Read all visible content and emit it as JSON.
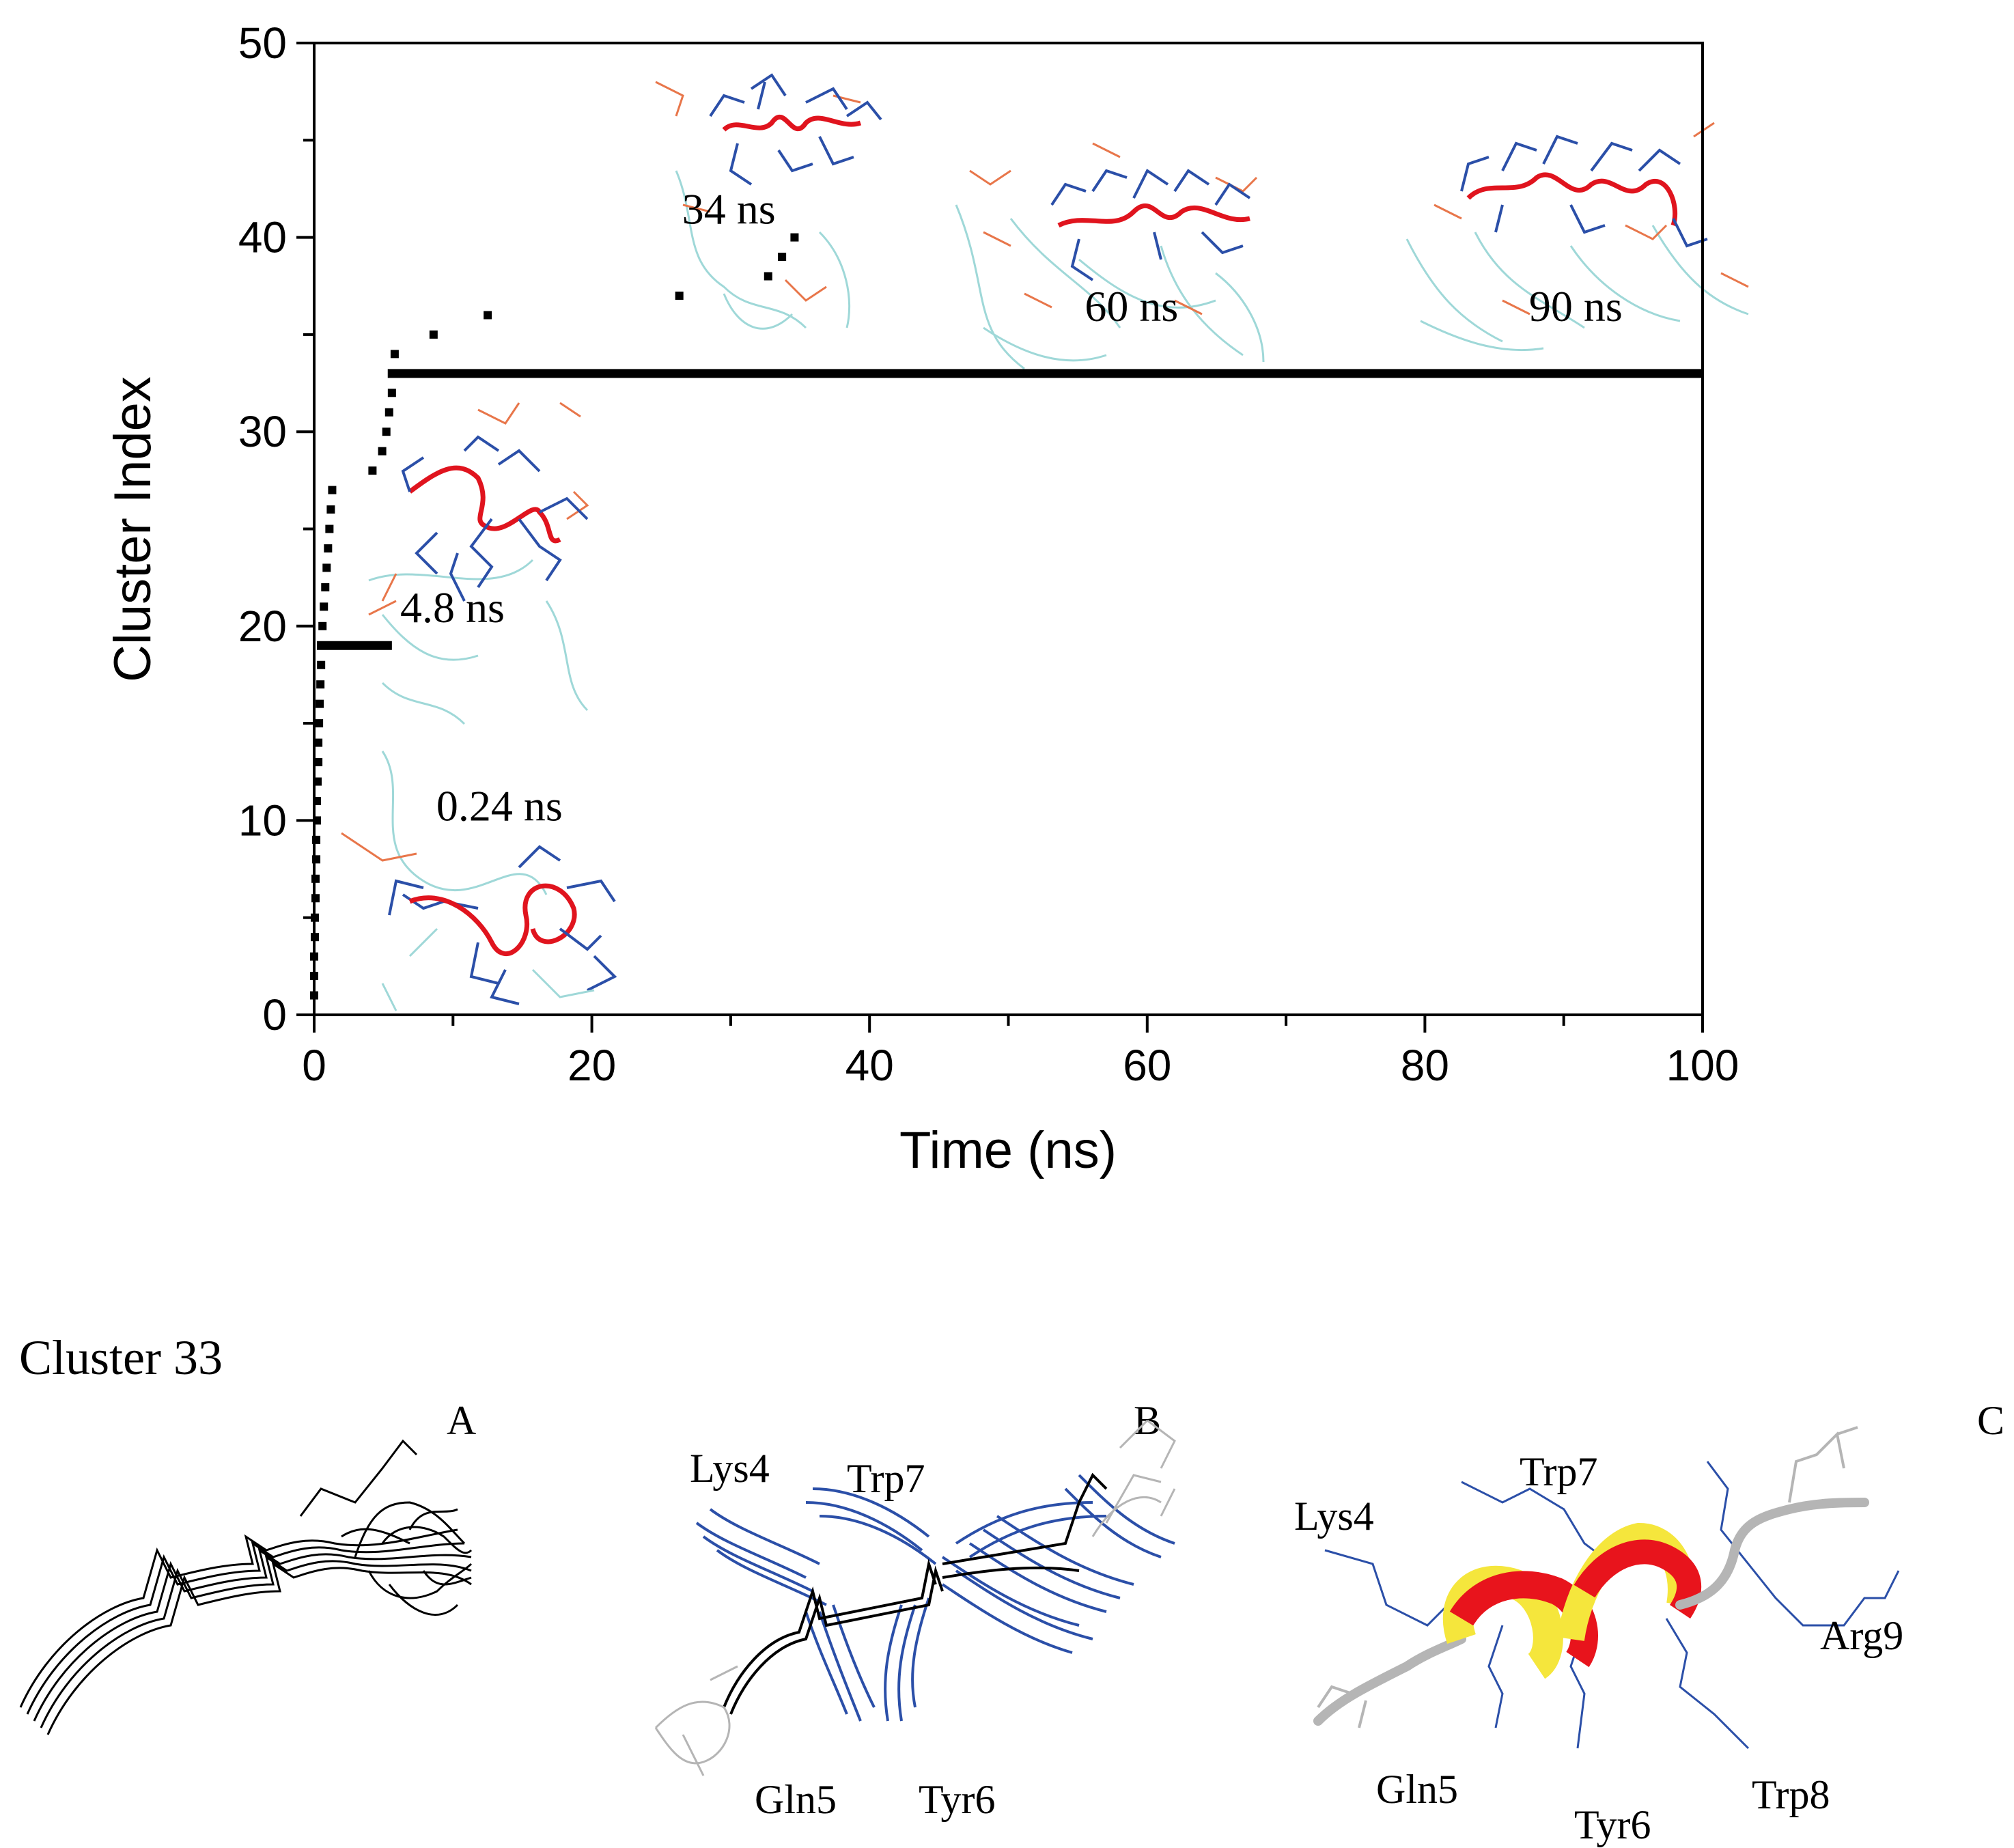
{
  "chart_data": {
    "type": "scatter",
    "title": "",
    "xlabel": "Time (ns)",
    "ylabel": "Cluster Index",
    "xlim": [
      0,
      100
    ],
    "ylim": [
      0,
      50
    ],
    "xticks": [
      "0",
      "20",
      "40",
      "60",
      "80",
      "100"
    ],
    "yticks": [
      "0",
      "10",
      "20",
      "30",
      "40",
      "50"
    ],
    "grid": false,
    "points": [
      {
        "x": 0,
        "y": 1
      },
      {
        "x": 0,
        "y": 2
      },
      {
        "x": 0,
        "y": 3
      },
      {
        "x": 0.05,
        "y": 4
      },
      {
        "x": 0.05,
        "y": 5
      },
      {
        "x": 0.1,
        "y": 6
      },
      {
        "x": 0.1,
        "y": 7
      },
      {
        "x": 0.15,
        "y": 8
      },
      {
        "x": 0.15,
        "y": 9
      },
      {
        "x": 0.2,
        "y": 10
      },
      {
        "x": 0.2,
        "y": 11
      },
      {
        "x": 0.25,
        "y": 12
      },
      {
        "x": 0.3,
        "y": 13
      },
      {
        "x": 0.3,
        "y": 14
      },
      {
        "x": 0.35,
        "y": 15
      },
      {
        "x": 0.4,
        "y": 16
      },
      {
        "x": 0.45,
        "y": 17
      },
      {
        "x": 0.5,
        "y": 18
      },
      {
        "x": 0.6,
        "y": 20
      },
      {
        "x": 0.7,
        "y": 21
      },
      {
        "x": 0.8,
        "y": 22
      },
      {
        "x": 0.9,
        "y": 23
      },
      {
        "x": 1.0,
        "y": 24
      },
      {
        "x": 1.1,
        "y": 25
      },
      {
        "x": 1.2,
        "y": 26
      },
      {
        "x": 1.3,
        "y": 27
      },
      {
        "x": 4.2,
        "y": 28
      },
      {
        "x": 4.9,
        "y": 29
      },
      {
        "x": 5.2,
        "y": 30
      },
      {
        "x": 5.4,
        "y": 31
      },
      {
        "x": 5.6,
        "y": 32
      },
      {
        "x": 5.8,
        "y": 34
      },
      {
        "x": 8.6,
        "y": 35
      },
      {
        "x": 12.5,
        "y": 36
      },
      {
        "x": 26.3,
        "y": 37
      },
      {
        "x": 32.7,
        "y": 38
      },
      {
        "x": 33.7,
        "y": 39
      },
      {
        "x": 34.6,
        "y": 40
      }
    ],
    "segments": [
      {
        "x0": 0.2,
        "x1": 5.6,
        "y": 19
      },
      {
        "x0": 5.3,
        "x1": 100,
        "y": 33
      }
    ],
    "annotations": [
      {
        "text": "34 ns",
        "x": 26.5,
        "y": 40.7
      },
      {
        "text": "60 ns",
        "x": 55.5,
        "y": 35.7
      },
      {
        "text": "90 ns",
        "x": 87.5,
        "y": 35.7
      },
      {
        "text": "4.8 ns",
        "x": 6.2,
        "y": 20.2
      },
      {
        "text": "0.24 ns",
        "x": 8.8,
        "y": 10.0
      }
    ]
  },
  "panels": {
    "heading": "Cluster 33",
    "a": {
      "letter": "A"
    },
    "b": {
      "letter": "B",
      "residues": [
        "Lys4",
        "Trp7",
        "Gln5",
        "Tyr6"
      ]
    },
    "c": {
      "letter": "C",
      "residues": [
        "Lys4",
        "Trp7",
        "Arg9",
        "Gln5",
        "Tyr6",
        "Trp8"
      ]
    }
  },
  "colors": {
    "axis": "#000000",
    "backbone_ribbon": "#e0141e",
    "sidechain": "#2b4fa8",
    "solvent": "#9fd8d8",
    "polar": "#e8764a",
    "helix_red": "#e8141c",
    "helix_yellow": "#f5e63c",
    "coil_gray": "#b5b5b5"
  }
}
